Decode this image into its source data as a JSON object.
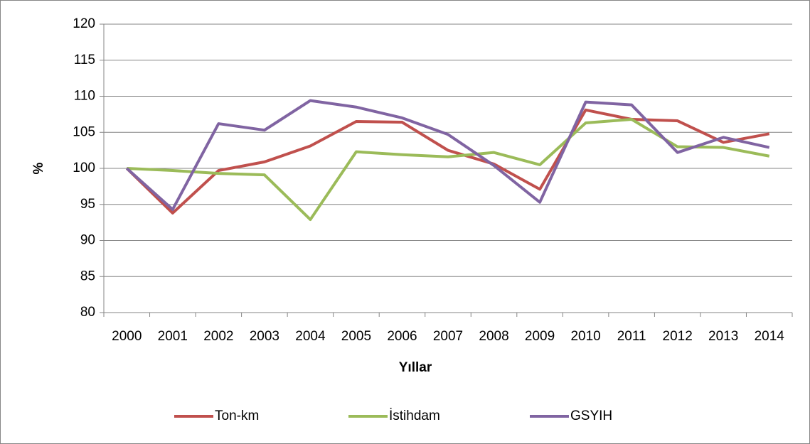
{
  "chart_data": {
    "type": "line",
    "x_label": "Yıllar",
    "y_label": "%",
    "categories": [
      "2000",
      "2001",
      "2002",
      "2003",
      "2004",
      "2005",
      "2006",
      "2007",
      "2008",
      "2009",
      "2010",
      "2011",
      "2012",
      "2013",
      "2014"
    ],
    "series": [
      {
        "name": "Ton-km",
        "color": "#c0504d",
        "values": [
          100,
          93.8,
          99.7,
          100.9,
          103.1,
          106.5,
          106.4,
          102.5,
          100.6,
          97.1,
          108.1,
          106.8,
          106.6,
          103.6,
          104.8
        ]
      },
      {
        "name": "İstihdam",
        "color": "#9bbb59",
        "values": [
          100,
          99.7,
          99.3,
          99.1,
          92.9,
          102.3,
          101.9,
          101.6,
          102.2,
          100.5,
          106.3,
          106.8,
          103.0,
          102.9,
          101.7
        ]
      },
      {
        "name": "GSYIH",
        "color": "#8064a2",
        "values": [
          100,
          94.3,
          106.2,
          105.3,
          109.4,
          108.5,
          107.0,
          104.7,
          100.4,
          95.3,
          109.2,
          108.8,
          102.2,
          104.3,
          102.9
        ]
      }
    ],
    "ylim": [
      80,
      120
    ],
    "yticks": [
      80,
      85,
      90,
      95,
      100,
      105,
      110,
      115,
      120
    ],
    "grid": true,
    "legend": "bottom"
  }
}
